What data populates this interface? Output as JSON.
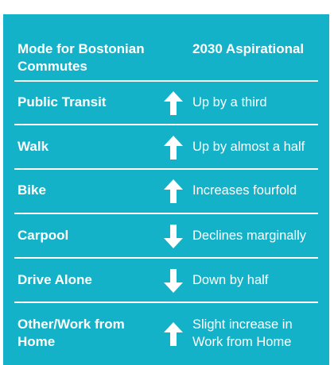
{
  "table": {
    "header": {
      "mode": "Mode for Bostonian Commutes",
      "goal": "2030 Aspirational"
    },
    "rows": [
      {
        "mode": "Public Transit",
        "direction": "up",
        "change": "Up by a third"
      },
      {
        "mode": "Walk",
        "direction": "up",
        "change": "Up by almost a half"
      },
      {
        "mode": "Bike",
        "direction": "up",
        "change": "Increases fourfold"
      },
      {
        "mode": "Carpool",
        "direction": "down",
        "change": "Declines marginally"
      },
      {
        "mode": "Drive Alone",
        "direction": "down",
        "change": "Down by half"
      },
      {
        "mode": "Other/Work from Home",
        "direction": "up",
        "change": "Slight increase in Work from Home"
      }
    ]
  },
  "colors": {
    "background": "#14b2c9",
    "text": "#ffffff"
  },
  "icons": {
    "up": "arrow-up-icon",
    "down": "arrow-down-icon"
  }
}
